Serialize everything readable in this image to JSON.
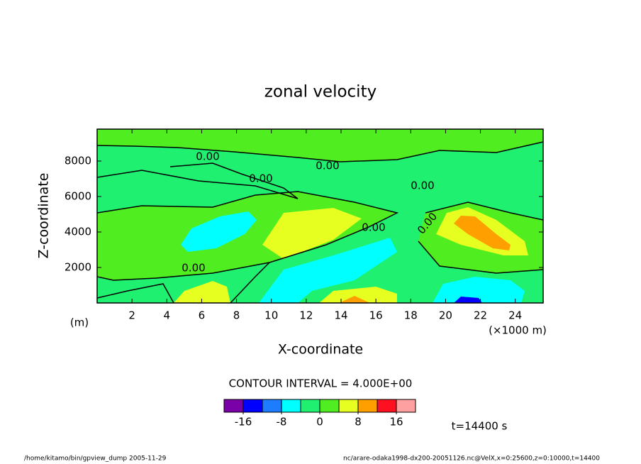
{
  "chart_data": {
    "type": "contour",
    "title": "zonal velocity",
    "x_label": "X-coordinate",
    "y_label": "Z-coordinate",
    "x_unit": "(×1000 m)",
    "y_unit": "(m)",
    "xlim": [
      0,
      25.6
    ],
    "xticks": [
      2,
      4,
      6,
      8,
      10,
      12,
      14,
      16,
      18,
      20,
      22,
      24
    ],
    "ylim": [
      0,
      9800
    ],
    "yticks": [
      2000,
      4000,
      6000,
      8000
    ],
    "levels": [
      -20,
      -16,
      -12,
      -8,
      -4,
      0,
      4,
      8,
      12,
      16,
      20
    ],
    "level_ticks": [
      -16,
      -8,
      0,
      8,
      16
    ],
    "colors": [
      "#7a00a8",
      "#0000ff",
      "#1e7cff",
      "#00ffff",
      "#20f070",
      "#50ee20",
      "#e6ff20",
      "#ffa000",
      "#ff1020",
      "#ffa0a0"
    ],
    "contour_labels": [
      "0.00",
      "0.00",
      "0.00",
      "0.00",
      "0.00",
      "0.00",
      "0.00"
    ],
    "contour_interval_label": "CONTOUR INTERVAL = 4.000E+00",
    "time_label": "t=14400 s"
  },
  "footer": {
    "left": "/home/kitamo/bin/gpview_dump  2005-11-29",
    "right": "nc/arare-odaka1998-dx200-20051126.nc@VelX,x=0:25600,z=0:10000,t=14400"
  }
}
